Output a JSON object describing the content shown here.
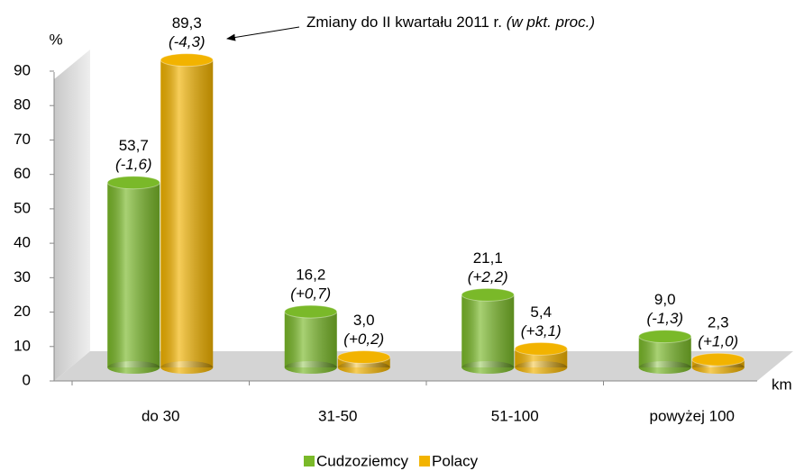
{
  "chart_data": {
    "type": "bar",
    "annotation": "Zmiany do II kwartału 2011 r.",
    "annotation_note": "(w pkt. proc.)",
    "y_axis_label": "%",
    "x_axis_label": "km",
    "categories": [
      "do 30",
      "31-50",
      "51-100",
      "powyżej 100"
    ],
    "series": [
      {
        "name": "Cudzoziemcy",
        "color": "#7ab929",
        "values": [
          53.7,
          16.2,
          21.1,
          9.0
        ],
        "value_labels": [
          "53,7",
          "16,2",
          "21,1",
          "9,0"
        ],
        "change_labels": [
          "(-1,6)",
          "(+0,7)",
          "(+2,2)",
          "(-1,3)"
        ]
      },
      {
        "name": "Polacy",
        "color": "#f2b300",
        "values": [
          89.3,
          3.0,
          5.4,
          2.3
        ],
        "value_labels": [
          "89,3",
          "3,0",
          "5,4",
          "2,3"
        ],
        "change_labels": [
          "(-4,3)",
          "(+0,2)",
          "(+3,1)",
          "(+1,0)"
        ]
      }
    ],
    "ylim": [
      0,
      90
    ],
    "yticks": [
      0,
      10,
      20,
      30,
      40,
      50,
      60,
      70,
      80,
      90
    ]
  }
}
